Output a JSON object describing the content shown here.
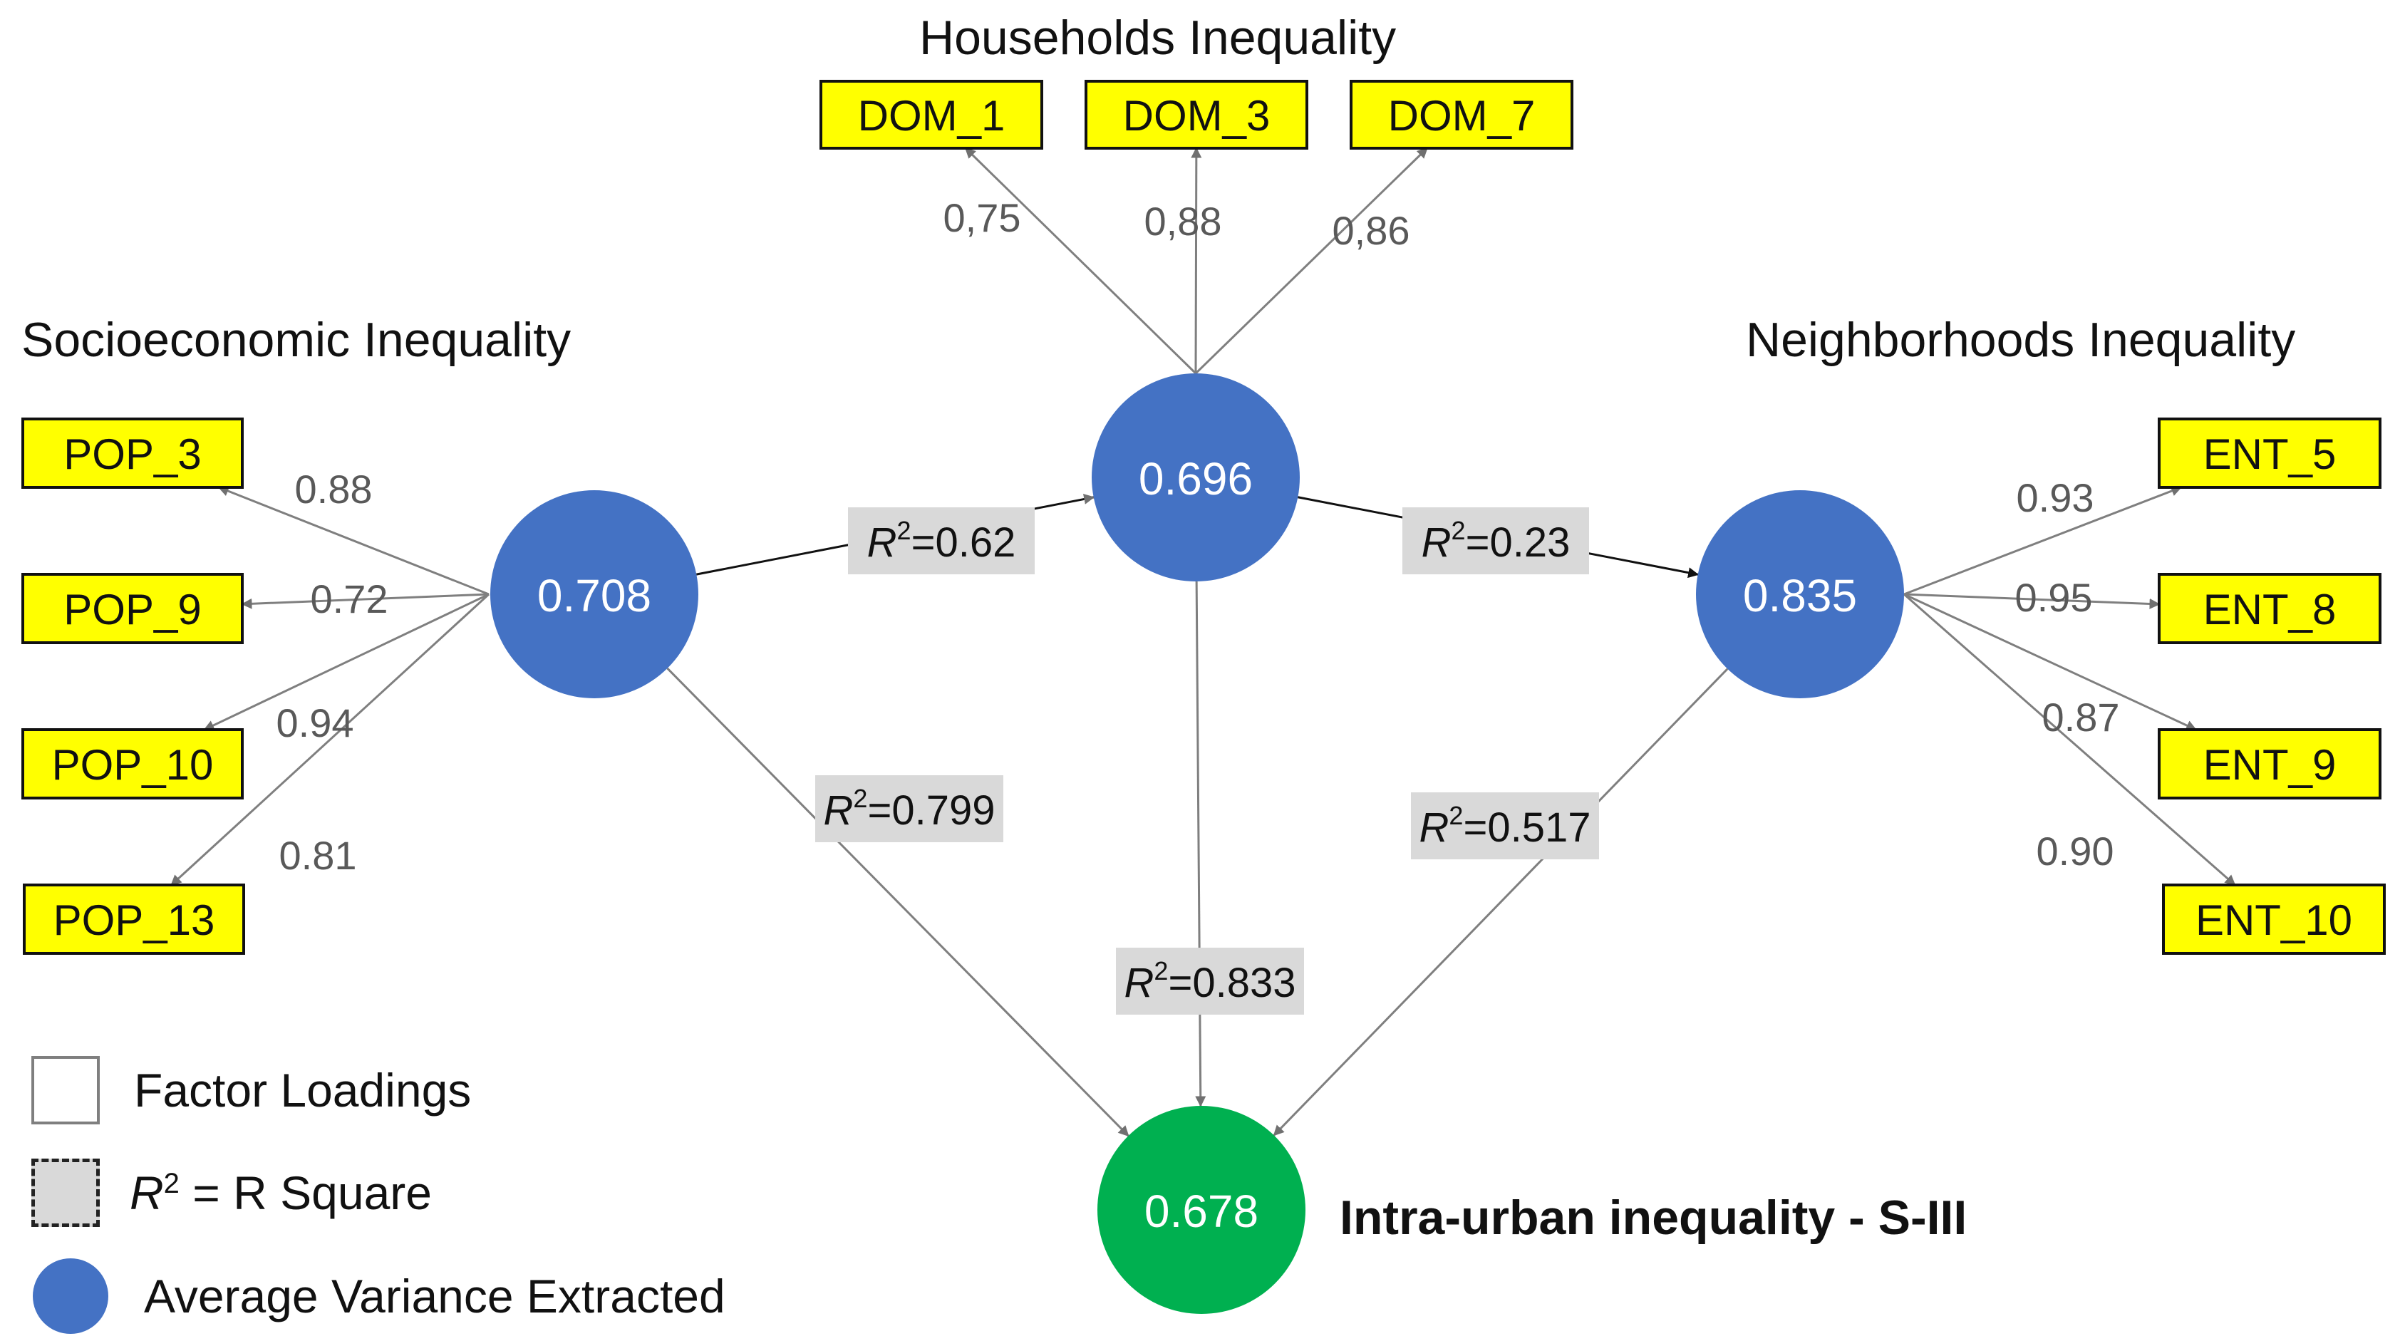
{
  "titles": {
    "households": "Households Inequality",
    "socioeconomic": "Socioeconomic Inequality",
    "neighborhoods": "Neighborhoods Inequality",
    "outcome": "Intra-urban inequality  - S-III"
  },
  "constructs": {
    "socioeconomic": {
      "ave": "0.708",
      "color": "#4472c4"
    },
    "households": {
      "ave": "0.696",
      "color": "#4472c4"
    },
    "neighborhoods": {
      "ave": "0.835",
      "color": "#4472c4"
    },
    "outcome": {
      "ave": "0.678",
      "color": "#00b050"
    }
  },
  "indicators": {
    "households": [
      {
        "name": "DOM_1",
        "loading": "0,75"
      },
      {
        "name": "DOM_3",
        "loading": "0,88"
      },
      {
        "name": "DOM_7",
        "loading": "0,86"
      }
    ],
    "socioeconomic": [
      {
        "name": "POP_3",
        "loading": "0.88"
      },
      {
        "name": "POP_9",
        "loading": "0.72"
      },
      {
        "name": "POP_10",
        "loading": "0.94"
      },
      {
        "name": "POP_13",
        "loading": "0.81"
      }
    ],
    "neighborhoods": [
      {
        "name": "ENT_5",
        "loading": "0.93"
      },
      {
        "name": "ENT_8",
        "loading": "0.95"
      },
      {
        "name": "ENT_9",
        "loading": "0.87"
      },
      {
        "name": "ENT_10",
        "loading": "0.90"
      }
    ]
  },
  "paths": [
    {
      "from": "socioeconomic",
      "to": "households",
      "r2_symbol": "R",
      "r2_sup": "2",
      "r2_value": "=0.62"
    },
    {
      "from": "households",
      "to": "neighborhoods",
      "r2_symbol": "R",
      "r2_sup": "2",
      "r2_value": "=0.23"
    },
    {
      "from": "socioeconomic",
      "to": "outcome",
      "r2_symbol": "R",
      "r2_sup": "2",
      "r2_value": "=0.799"
    },
    {
      "from": "households",
      "to": "outcome",
      "r2_symbol": "R",
      "r2_sup": "2",
      "r2_value": "=0.833"
    },
    {
      "from": "neighborhoods",
      "to": "outcome",
      "r2_symbol": "R",
      "r2_sup": "2",
      "r2_value": "=0.517"
    }
  ],
  "legend": {
    "factor_loadings": "Factor Loadings",
    "r2_symbol": "R",
    "r2_sup": "2",
    "r2_text": " = R Square",
    "ave": "Average Variance Extracted"
  },
  "colors": {
    "indicator_fill": "#ffff00",
    "label_fill": "#d9d9d9",
    "line": "#7f7f7f",
    "dark_line": "#111111"
  }
}
